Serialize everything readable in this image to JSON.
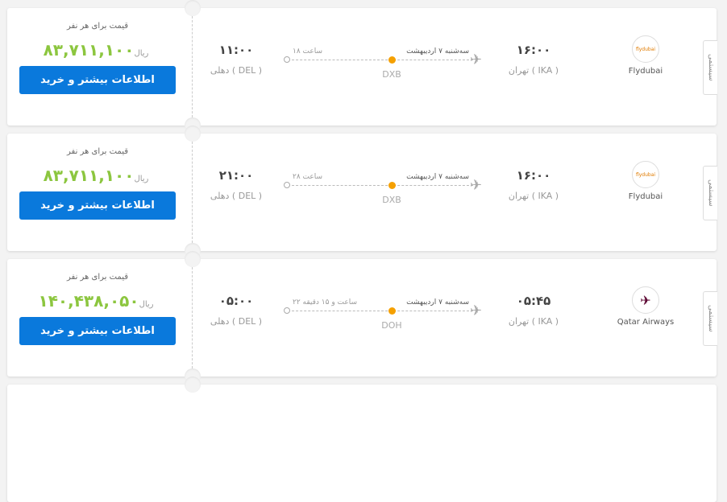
{
  "labels": {
    "per_person": "قیمت برای هر نفر",
    "currency": "ریال",
    "buy": "اطلاعات بیشتر و خرید",
    "system_tab": "سیستمی"
  },
  "flights": [
    {
      "airline": "Flydubai",
      "logo": "flydubai",
      "price": "۸۳,۷۱۱,۱۰۰",
      "dep_time": "۱۶:۰۰",
      "dep_city": "تهران ( IKA )",
      "arr_time": "۱۱:۰۰",
      "arr_city": "دهلی ( DEL )",
      "date": "سه‌شنبه ۷ اردیبهشت",
      "duration": "۱۸ ساعت",
      "stop": "DXB"
    },
    {
      "airline": "Flydubai",
      "logo": "flydubai",
      "price": "۸۳,۷۱۱,۱۰۰",
      "dep_time": "۱۶:۰۰",
      "dep_city": "تهران ( IKA )",
      "arr_time": "۲۱:۰۰",
      "arr_city": "دهلی ( DEL )",
      "date": "سه‌شنبه ۷ اردیبهشت",
      "duration": "۲۸ ساعت",
      "stop": "DXB"
    },
    {
      "airline": "Qatar Airways",
      "logo": "✈",
      "price": "۱۴۰,۴۳۸,۰۵۰",
      "dep_time": "۰۵:۴۵",
      "dep_city": "تهران ( IKA )",
      "arr_time": "۰۵:۰۰",
      "arr_city": "دهلی ( DEL )",
      "date": "سه‌شنبه ۷ اردیبهشت",
      "duration": "۲۲ ساعت و ۱۵ دقیقه",
      "stop": "DOH"
    }
  ],
  "colors": {
    "price": "#8cc63f",
    "button": "#0a79dc",
    "stop_dot": "#f5a000"
  }
}
